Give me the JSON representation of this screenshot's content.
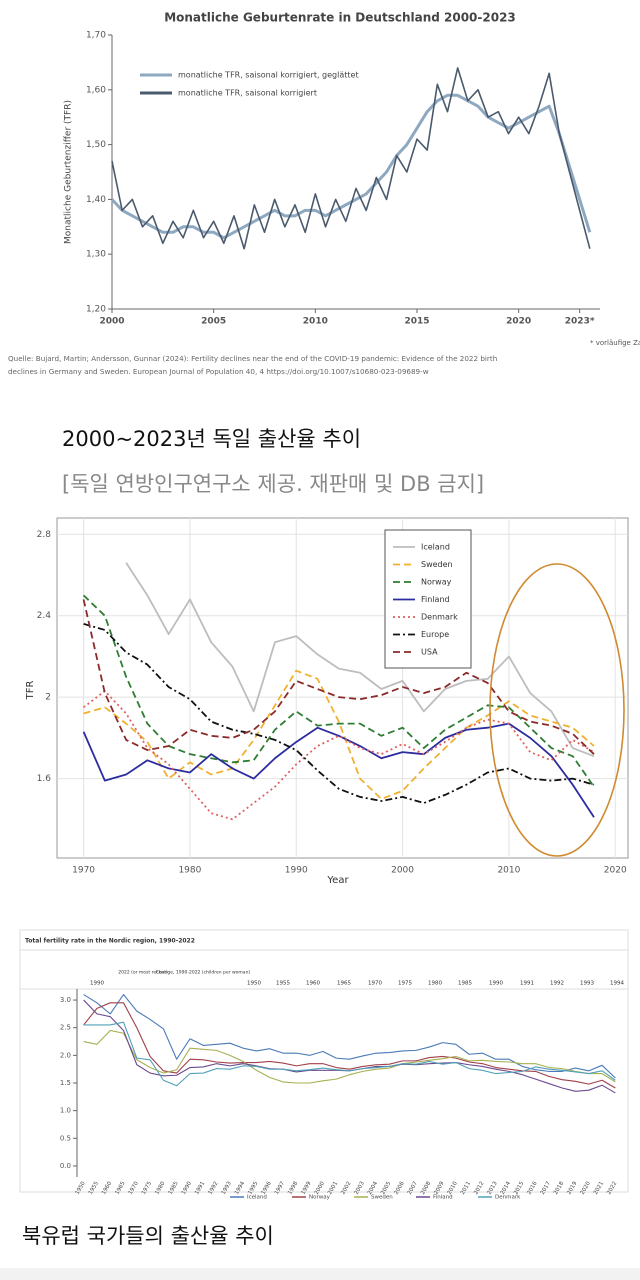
{
  "chart_data": [
    {
      "type": "line",
      "title": "Monatliche Geburtenrate in Deutschland 2000-2023",
      "ylabel": "Monatliche Geburtenziffer (TFR)",
      "x": [
        2000.0,
        2000.5,
        2001.0,
        2001.5,
        2002.0,
        2002.5,
        2003.0,
        2003.5,
        2004.0,
        2004.5,
        2005.0,
        2005.5,
        2006.0,
        2006.5,
        2007.0,
        2007.5,
        2008.0,
        2008.5,
        2009.0,
        2009.5,
        2010.0,
        2010.5,
        2011.0,
        2011.5,
        2012.0,
        2012.5,
        2013.0,
        2013.5,
        2014.0,
        2014.5,
        2015.0,
        2015.5,
        2016.0,
        2016.5,
        2017.0,
        2017.5,
        2018.0,
        2018.5,
        2019.0,
        2019.5,
        2020.0,
        2020.5,
        2021.0,
        2021.5,
        2022.0,
        2022.5,
        2023.0,
        2023.5
      ],
      "series": [
        {
          "name": "monatliche TFR, saisonal korrigiert, geglättet",
          "color": "#8ea8c0",
          "dash": "solid",
          "values": [
            1.4,
            1.38,
            1.37,
            1.36,
            1.35,
            1.34,
            1.34,
            1.35,
            1.35,
            1.34,
            1.34,
            1.33,
            1.34,
            1.35,
            1.36,
            1.37,
            1.38,
            1.37,
            1.37,
            1.38,
            1.38,
            1.37,
            1.38,
            1.39,
            1.4,
            1.41,
            1.43,
            1.45,
            1.48,
            1.5,
            1.53,
            1.56,
            1.58,
            1.59,
            1.59,
            1.58,
            1.57,
            1.55,
            1.54,
            1.53,
            1.54,
            1.55,
            1.56,
            1.57,
            1.52,
            1.46,
            1.4,
            1.34
          ]
        },
        {
          "name": "monatliche TFR, saisonal korrigiert",
          "color": "#4a5a6c",
          "dash": "solid",
          "values": [
            1.47,
            1.38,
            1.4,
            1.35,
            1.37,
            1.32,
            1.36,
            1.33,
            1.38,
            1.33,
            1.36,
            1.32,
            1.37,
            1.31,
            1.39,
            1.34,
            1.4,
            1.35,
            1.39,
            1.34,
            1.41,
            1.35,
            1.4,
            1.36,
            1.42,
            1.38,
            1.44,
            1.4,
            1.48,
            1.45,
            1.51,
            1.49,
            1.61,
            1.56,
            1.64,
            1.58,
            1.6,
            1.55,
            1.56,
            1.52,
            1.55,
            1.52,
            1.57,
            1.63,
            1.52,
            1.45,
            1.38,
            1.31
          ]
        }
      ],
      "xlim": [
        2000,
        2024
      ],
      "ylim": [
        1.2,
        1.7
      ],
      "xticks": [
        2000,
        2005,
        2010,
        2015,
        2020,
        {
          "value": 2023,
          "label": "2023*"
        }
      ],
      "yticks": [
        {
          "value": 1.2,
          "label": "1,20"
        },
        {
          "value": 1.3,
          "label": "1,30"
        },
        {
          "value": 1.4,
          "label": "1,40"
        },
        {
          "value": 1.5,
          "label": "1,50"
        },
        {
          "value": 1.6,
          "label": "1,60"
        },
        {
          "value": 1.7,
          "label": "1,70"
        }
      ],
      "grid": false,
      "legend": "upper left",
      "footnote": "* vorläufige Za",
      "source": [
        "Quelle: Bujard, Martin; Andersson, Gunnar (2024): Fertility declines near the end of the COVID-19 pandemic: Evidence of the 2022 birth",
        "declines in Germany and Sweden. European Journal of Population 40, 4 https://doi.org/10.1007/s10680-023-09689-w"
      ]
    },
    {
      "type": "line",
      "xlabel": "Year",
      "ylabel": "TFR",
      "x": [
        1970,
        1972,
        1974,
        1976,
        1978,
        1980,
        1982,
        1984,
        1986,
        1988,
        1990,
        1992,
        1994,
        1996,
        1998,
        2000,
        2002,
        2004,
        2006,
        2008,
        2010,
        2012,
        2014,
        2016,
        2018
      ],
      "series": [
        {
          "name": "Iceland",
          "color": "#bdbdbd",
          "dash": "solid",
          "values": [
            null,
            null,
            2.66,
            2.5,
            2.31,
            2.48,
            2.27,
            2.15,
            1.93,
            2.27,
            2.3,
            2.21,
            2.14,
            2.12,
            2.04,
            2.08,
            1.93,
            2.04,
            2.08,
            2.09,
            2.2,
            2.02,
            1.93,
            1.75,
            1.71
          ]
        },
        {
          "name": "Sweden",
          "color": "#f0b030",
          "dash": "dashed",
          "values": [
            1.92,
            1.95,
            1.87,
            1.78,
            1.6,
            1.68,
            1.62,
            1.65,
            1.79,
            1.96,
            2.13,
            2.09,
            1.88,
            1.6,
            1.5,
            1.54,
            1.65,
            1.75,
            1.85,
            1.91,
            1.98,
            1.91,
            1.88,
            1.85,
            1.76
          ]
        },
        {
          "name": "Norway",
          "color": "#2e7d32",
          "dash": "dashed",
          "values": [
            2.5,
            2.4,
            2.1,
            1.87,
            1.76,
            1.72,
            1.7,
            1.68,
            1.69,
            1.84,
            1.93,
            1.86,
            1.87,
            1.87,
            1.81,
            1.85,
            1.75,
            1.84,
            1.9,
            1.96,
            1.95,
            1.85,
            1.75,
            1.71,
            1.56
          ]
        },
        {
          "name": "Finland",
          "color": "#2c2ca0",
          "dash": "solid",
          "values": [
            1.83,
            1.59,
            1.62,
            1.69,
            1.65,
            1.63,
            1.72,
            1.65,
            1.6,
            1.7,
            1.78,
            1.85,
            1.81,
            1.76,
            1.7,
            1.73,
            1.72,
            1.8,
            1.84,
            1.85,
            1.87,
            1.8,
            1.71,
            1.57,
            1.41
          ]
        },
        {
          "name": "Denmark",
          "color": "#e06060",
          "dash": "dotted",
          "values": [
            1.95,
            2.03,
            1.92,
            1.75,
            1.67,
            1.55,
            1.43,
            1.4,
            1.48,
            1.56,
            1.67,
            1.76,
            1.81,
            1.75,
            1.72,
            1.77,
            1.72,
            1.78,
            1.85,
            1.89,
            1.87,
            1.73,
            1.69,
            1.79,
            1.73
          ]
        },
        {
          "name": "Europe",
          "color": "#111111",
          "dash": "dashdot",
          "values": [
            2.36,
            2.33,
            2.22,
            2.16,
            2.05,
            1.99,
            1.88,
            1.84,
            1.82,
            1.79,
            1.74,
            1.64,
            1.55,
            1.51,
            1.49,
            1.51,
            1.48,
            1.52,
            1.57,
            1.63,
            1.65,
            1.6,
            1.59,
            1.6,
            1.57
          ]
        },
        {
          "name": "USA",
          "color": "#8b2a2a",
          "dash": "dashed",
          "values": [
            2.48,
            2.02,
            1.79,
            1.74,
            1.76,
            1.84,
            1.81,
            1.8,
            1.84,
            1.93,
            2.08,
            2.04,
            2.0,
            1.99,
            2.01,
            2.05,
            2.02,
            2.05,
            2.12,
            2.07,
            1.93,
            1.88,
            1.86,
            1.82,
            1.72
          ]
        }
      ],
      "xlim": [
        1967.5,
        2021.2
      ],
      "ylim": [
        1.21,
        2.88
      ],
      "xticks": [
        1970,
        1980,
        1990,
        2000,
        2010,
        2020
      ],
      "yticks": [
        1.6,
        2.0,
        2.4,
        2.8
      ],
      "grid": true,
      "legend": "upper center"
    },
    {
      "type": "line",
      "title": "Total fertility rate in the Nordic region, 1990-2022",
      "header_cells": [
        "1990",
        "2022 (or most recent)",
        "Change, 1990-2022 (children per woman)",
        "1950",
        "1955",
        "1960",
        "1965",
        "1970",
        "1975",
        "1980",
        "1985",
        "1990",
        "1991",
        "1992",
        "1993",
        "1994"
      ],
      "categories": [
        "1950",
        "1955",
        "1960",
        "1965",
        "1970",
        "1975",
        "1980",
        "1985",
        "1990",
        "1991",
        "1992",
        "1993",
        "1994",
        "1995",
        "1996",
        "1997",
        "1998",
        "1999",
        "2000",
        "2001",
        "2002",
        "2003",
        "2004",
        "2005",
        "2006",
        "2007",
        "2008",
        "2009",
        "2010",
        "2011",
        "2012",
        "2013",
        "2014",
        "2015",
        "2016",
        "2017",
        "2018",
        "2019",
        "2020",
        "2021",
        "2022"
      ],
      "series": [
        {
          "name": "Iceland",
          "color": "#4a7ab8",
          "dash": "solid",
          "values": [
            3.1,
            2.95,
            2.75,
            3.1,
            2.8,
            2.65,
            2.48,
            1.93,
            2.3,
            2.18,
            2.2,
            2.22,
            2.13,
            2.08,
            2.12,
            2.04,
            2.04,
            2.0,
            2.07,
            1.95,
            1.93,
            1.99,
            2.04,
            2.05,
            2.08,
            2.09,
            2.15,
            2.23,
            2.2,
            2.02,
            2.04,
            1.93,
            1.93,
            1.8,
            1.74,
            1.71,
            1.71,
            1.77,
            1.72,
            1.82,
            1.59
          ]
        },
        {
          "name": "Norway",
          "color": "#a0404a",
          "dash": "solid",
          "values": [
            2.55,
            2.85,
            2.95,
            2.95,
            2.5,
            1.98,
            1.72,
            1.68,
            1.93,
            1.92,
            1.88,
            1.86,
            1.87,
            1.87,
            1.89,
            1.86,
            1.81,
            1.85,
            1.85,
            1.78,
            1.75,
            1.8,
            1.83,
            1.84,
            1.9,
            1.9,
            1.96,
            1.98,
            1.95,
            1.88,
            1.85,
            1.78,
            1.75,
            1.72,
            1.71,
            1.62,
            1.56,
            1.53,
            1.48,
            1.55,
            1.41
          ]
        },
        {
          "name": "Sweden",
          "color": "#a8b050",
          "dash": "solid",
          "values": [
            2.25,
            2.2,
            2.45,
            2.4,
            1.92,
            1.78,
            1.68,
            1.74,
            2.13,
            2.11,
            2.09,
            2.0,
            1.89,
            1.73,
            1.6,
            1.52,
            1.5,
            1.5,
            1.54,
            1.57,
            1.65,
            1.71,
            1.75,
            1.77,
            1.85,
            1.88,
            1.91,
            1.94,
            1.98,
            1.9,
            1.91,
            1.89,
            1.88,
            1.85,
            1.85,
            1.78,
            1.76,
            1.71,
            1.67,
            1.67,
            1.52
          ]
        },
        {
          "name": "Finland",
          "color": "#6a4a90",
          "dash": "solid",
          "values": [
            3.0,
            2.75,
            2.7,
            2.45,
            1.83,
            1.68,
            1.63,
            1.64,
            1.78,
            1.79,
            1.85,
            1.81,
            1.85,
            1.81,
            1.76,
            1.75,
            1.7,
            1.73,
            1.73,
            1.73,
            1.72,
            1.76,
            1.8,
            1.8,
            1.84,
            1.83,
            1.85,
            1.86,
            1.87,
            1.83,
            1.8,
            1.75,
            1.71,
            1.65,
            1.57,
            1.49,
            1.41,
            1.35,
            1.37,
            1.46,
            1.32
          ]
        },
        {
          "name": "Denmark",
          "color": "#50a0b8",
          "dash": "solid",
          "values": [
            2.55,
            2.55,
            2.55,
            2.6,
            1.95,
            1.92,
            1.55,
            1.45,
            1.67,
            1.68,
            1.76,
            1.75,
            1.81,
            1.8,
            1.75,
            1.75,
            1.72,
            1.74,
            1.77,
            1.74,
            1.72,
            1.76,
            1.78,
            1.8,
            1.85,
            1.84,
            1.89,
            1.84,
            1.87,
            1.76,
            1.73,
            1.67,
            1.69,
            1.71,
            1.79,
            1.75,
            1.73,
            1.7,
            1.67,
            1.72,
            1.55
          ]
        }
      ],
      "ylim": [
        -0.2,
        3.2
      ],
      "yticks": [
        {
          "value": 0,
          "label": "0.0"
        },
        {
          "value": 0.5,
          "label": "0.5"
        },
        {
          "value": 1,
          "label": "1.0"
        },
        {
          "value": 1.5,
          "label": "1.5"
        },
        {
          "value": 2,
          "label": "2.0"
        },
        {
          "value": 2.5,
          "label": "2.5"
        },
        {
          "value": 3,
          "label": "3.0"
        }
      ],
      "grid": false,
      "legend": "lower center"
    }
  ],
  "captions": [
    "2000~2023년 독일 출산율 추이",
    "[독일 연방인구연구소 제공. 재판매 및 DB 금지]",
    "북유럽 국가들의 출산율 추이"
  ]
}
